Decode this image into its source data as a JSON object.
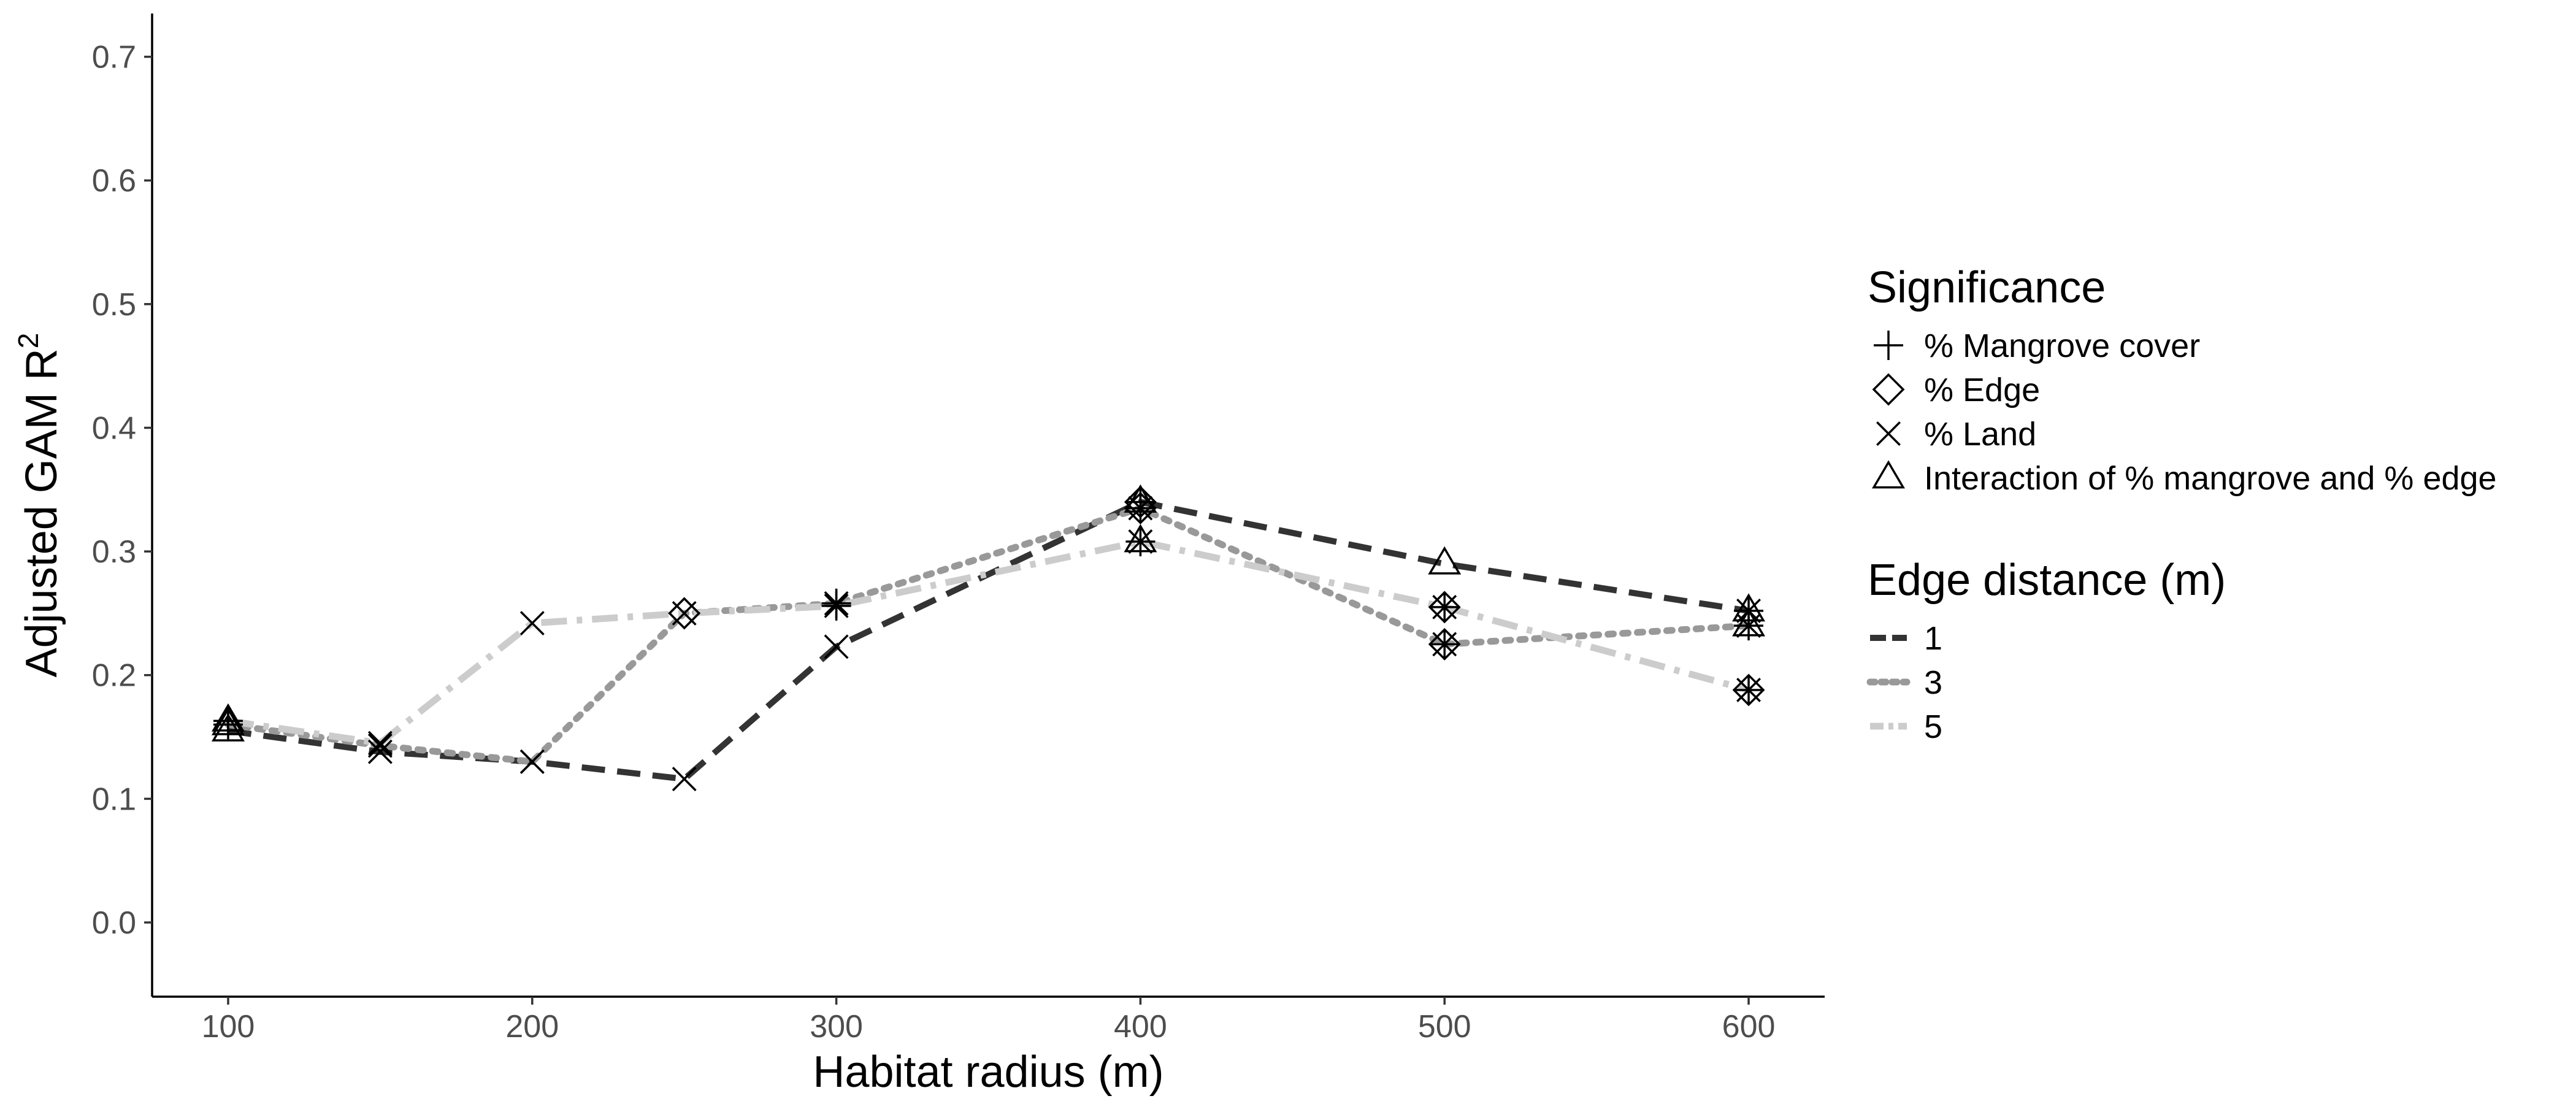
{
  "chart_data": {
    "type": "line",
    "xlabel": "Habitat radius (m)",
    "ylabel": "Adjusted GAM R",
    "ylabel_superscript": "2",
    "xlim": [
      75,
      625
    ],
    "ylim": [
      -0.06,
      0.735
    ],
    "x_ticks": [
      100,
      200,
      300,
      400,
      500,
      600
    ],
    "x_tick_labels": [
      "100",
      "200",
      "300",
      "400",
      "500",
      "600"
    ],
    "y_ticks": [
      0.0,
      0.1,
      0.2,
      0.3,
      0.4,
      0.5,
      0.6,
      0.7
    ],
    "y_tick_labels": [
      "0.0",
      "0.1",
      "0.2",
      "0.3",
      "0.4",
      "0.5",
      "0.6",
      "0.7"
    ],
    "grid": false,
    "legend_position": "right",
    "series": [
      {
        "name": "1",
        "color": "#333333",
        "dash": "dashed",
        "points": [
          {
            "x": 100,
            "y": 0.155,
            "shapes": [
              "triangle"
            ]
          },
          {
            "x": 150,
            "y": 0.138,
            "shapes": [
              "cross"
            ]
          },
          {
            "x": 200,
            "y": 0.13,
            "shapes": [
              "cross"
            ]
          },
          {
            "x": 250,
            "y": 0.116,
            "shapes": [
              "cross"
            ]
          },
          {
            "x": 300,
            "y": 0.223,
            "shapes": [
              "cross"
            ]
          },
          {
            "x": 400,
            "y": 0.34,
            "shapes": [
              "plus",
              "diamond",
              "triangle"
            ]
          },
          {
            "x": 500,
            "y": 0.29,
            "shapes": [
              "triangle"
            ]
          },
          {
            "x": 600,
            "y": 0.252,
            "shapes": [
              "plus",
              "cross",
              "triangle"
            ]
          }
        ]
      },
      {
        "name": "3",
        "color": "#999999",
        "dash": "dotted",
        "points": [
          {
            "x": 100,
            "y": 0.16,
            "shapes": [
              "plus",
              "triangle"
            ]
          },
          {
            "x": 150,
            "y": 0.143,
            "shapes": [
              "cross"
            ]
          },
          {
            "x": 200,
            "y": 0.13,
            "shapes": [
              "cross"
            ]
          },
          {
            "x": 250,
            "y": 0.25,
            "shapes": [
              "diamond"
            ]
          },
          {
            "x": 300,
            "y": 0.258,
            "shapes": [
              "plus",
              "cross"
            ]
          },
          {
            "x": 400,
            "y": 0.335,
            "shapes": [
              "plus",
              "diamond",
              "cross"
            ]
          },
          {
            "x": 500,
            "y": 0.225,
            "shapes": [
              "plus",
              "diamond",
              "cross"
            ]
          },
          {
            "x": 600,
            "y": 0.24,
            "shapes": [
              "plus",
              "cross",
              "triangle"
            ]
          }
        ]
      },
      {
        "name": "5",
        "color": "#cccccc",
        "dash": "dotdash",
        "points": [
          {
            "x": 100,
            "y": 0.163,
            "shapes": [
              "plus",
              "triangle"
            ]
          },
          {
            "x": 150,
            "y": 0.145,
            "shapes": [
              "cross"
            ]
          },
          {
            "x": 200,
            "y": 0.242,
            "shapes": [
              "cross"
            ]
          },
          {
            "x": 250,
            "y": 0.25,
            "shapes": [
              "diamond",
              "cross"
            ]
          },
          {
            "x": 300,
            "y": 0.256,
            "shapes": [
              "plus",
              "cross"
            ]
          },
          {
            "x": 400,
            "y": 0.308,
            "shapes": [
              "plus",
              "cross",
              "triangle"
            ]
          },
          {
            "x": 500,
            "y": 0.255,
            "shapes": [
              "plus",
              "diamond",
              "cross"
            ]
          },
          {
            "x": 600,
            "y": 0.188,
            "shapes": [
              "plus",
              "diamond",
              "cross"
            ]
          }
        ]
      }
    ],
    "legends": [
      {
        "title": "Significance",
        "items": [
          {
            "shape": "plus",
            "label": "% Mangrove cover"
          },
          {
            "shape": "diamond",
            "label": "% Edge"
          },
          {
            "shape": "cross",
            "label": "% Land"
          },
          {
            "shape": "triangle",
            "label": "Interaction of % mangrove and % edge"
          }
        ]
      },
      {
        "title": "Edge distance (m)",
        "items": [
          {
            "series": "1",
            "label": "1"
          },
          {
            "series": "3",
            "label": "3"
          },
          {
            "series": "5",
            "label": "5"
          }
        ]
      }
    ]
  }
}
